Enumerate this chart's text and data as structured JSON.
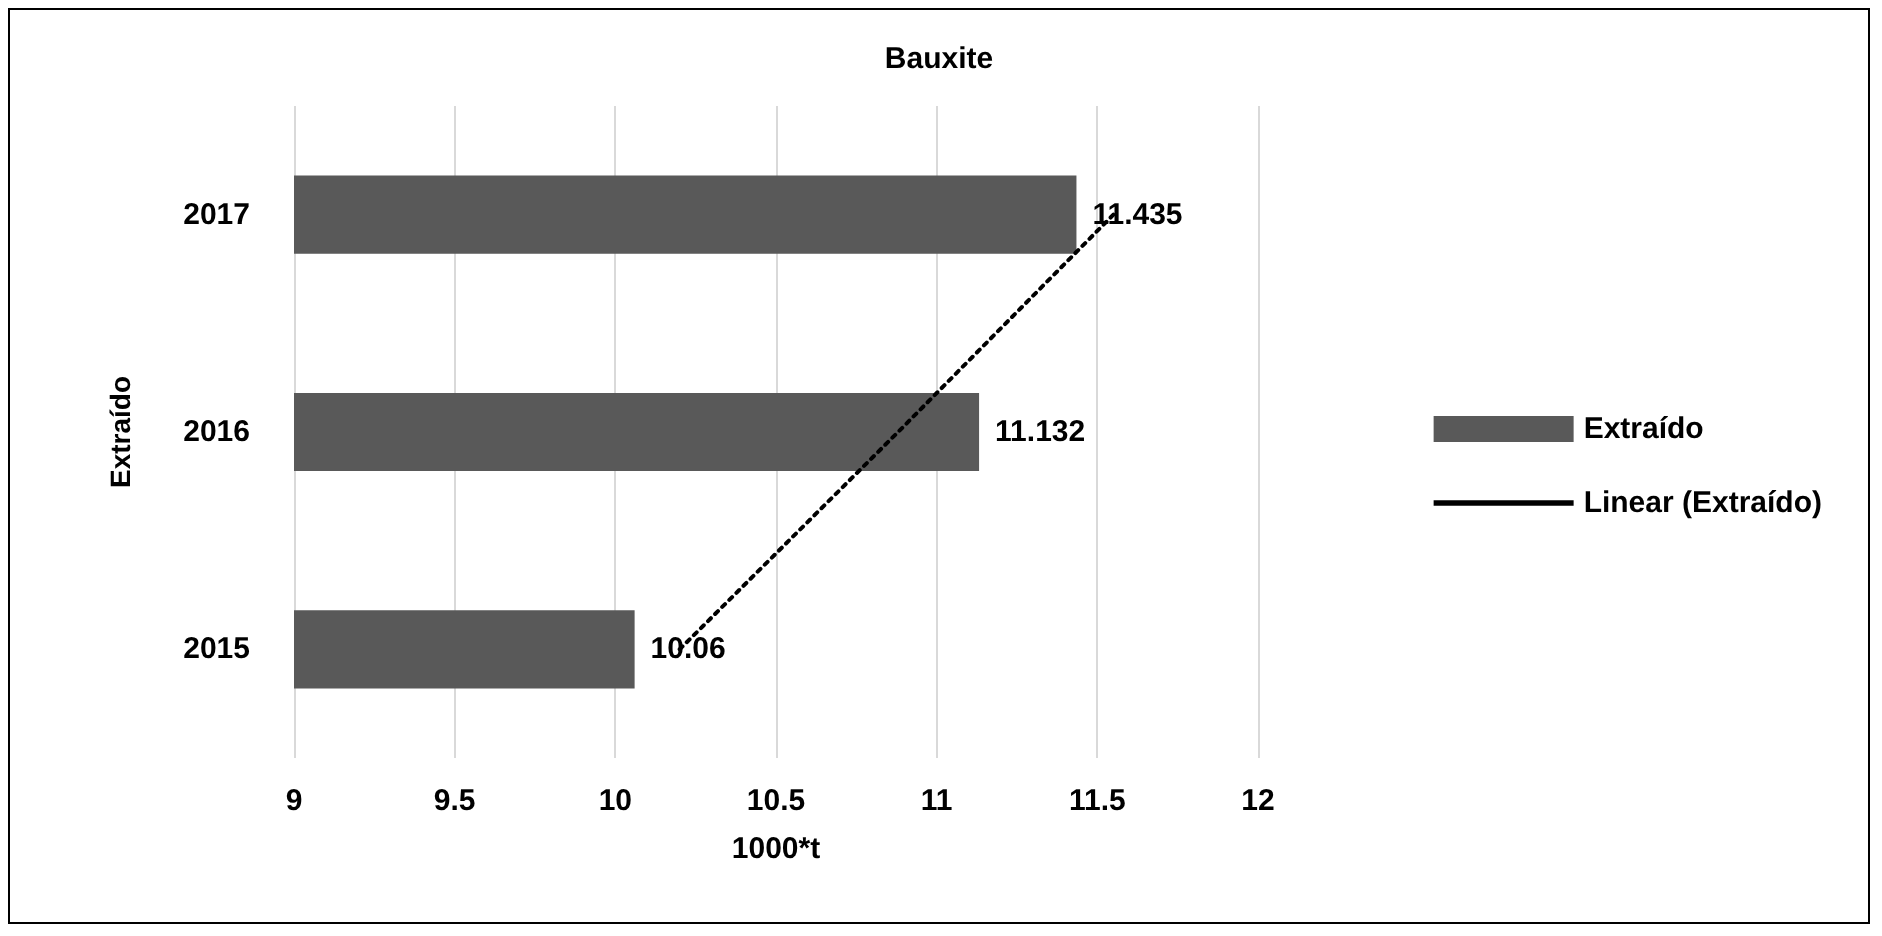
{
  "chart_data": {
    "type": "bar",
    "orientation": "horizontal",
    "title": "Bauxite",
    "xlabel": "1000*t",
    "ylabel": "Extraído",
    "categories": [
      "2017",
      "2016",
      "2015"
    ],
    "series": [
      {
        "name": "Extraído",
        "color": "#595959",
        "values": [
          11.435,
          11.132,
          10.06
        ],
        "value_labels": [
          "11.435",
          "11.132",
          "10.06"
        ]
      },
      {
        "name": "Linear (Extraído)",
        "type": "line",
        "color": "#000000",
        "line_style": "dotted",
        "values": [
          11.55,
          10.88,
          10.2
        ]
      }
    ],
    "xlim": [
      9,
      12
    ],
    "xticks": [
      9,
      9.5,
      10,
      10.5,
      11,
      11.5,
      12
    ],
    "grid": "x",
    "legend": "right"
  }
}
